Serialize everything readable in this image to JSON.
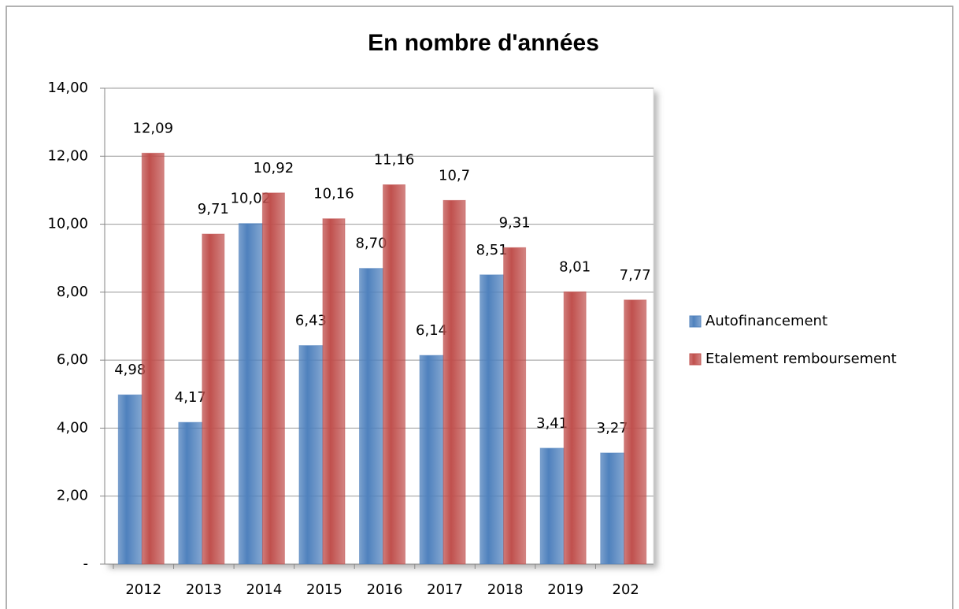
{
  "chart_data": {
    "type": "bar",
    "title": "En nombre d'années",
    "categories": [
      "2012",
      "2013",
      "2014",
      "2015",
      "2016",
      "2017",
      "2018",
      "2019",
      "202"
    ],
    "series": [
      {
        "name": "Autofinancement",
        "color": "#4f81bd",
        "values": [
          4.98,
          4.17,
          10.02,
          6.43,
          8.7,
          6.14,
          8.51,
          3.41,
          3.27
        ],
        "value_labels": [
          "4,98",
          "4,17",
          "10,02",
          "6,43",
          "8,70",
          "6,14",
          "8,51",
          "3,41",
          "3,27"
        ]
      },
      {
        "name": "Etalement remboursement",
        "color": "#c0504d",
        "values": [
          12.09,
          9.71,
          10.92,
          10.16,
          11.16,
          10.7,
          9.31,
          8.01,
          7.77
        ],
        "value_labels": [
          "12,09",
          "9,71",
          "10,92",
          "10,16",
          "11,16",
          "10,7",
          "9,31",
          "8,01",
          "7,77"
        ]
      }
    ],
    "ylim": [
      0,
      14
    ],
    "yticks": [
      {
        "value": 0,
        "label": "-"
      },
      {
        "value": 2,
        "label": "2,00"
      },
      {
        "value": 4,
        "label": "4,00"
      },
      {
        "value": 6,
        "label": "6,00"
      },
      {
        "value": 8,
        "label": "8,00"
      },
      {
        "value": 10,
        "label": "10,00"
      },
      {
        "value": 12,
        "label": "12,00"
      },
      {
        "value": 14,
        "label": "14,00"
      }
    ],
    "grid": true,
    "legend": "right"
  }
}
